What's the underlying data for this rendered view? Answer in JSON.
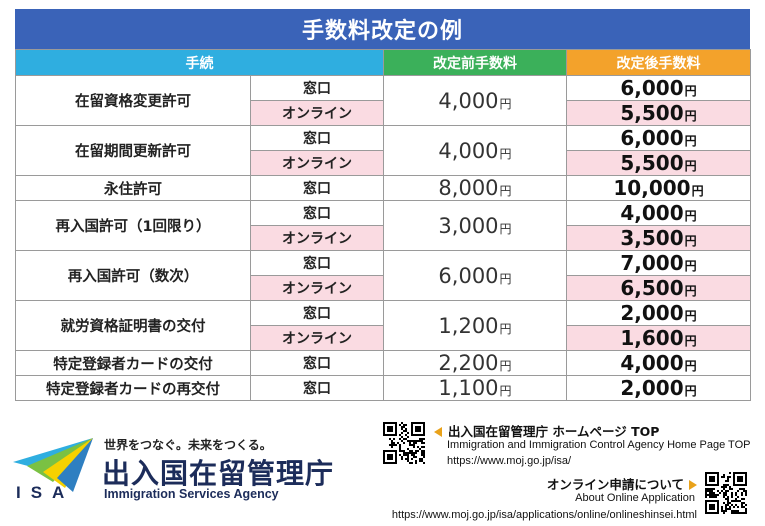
{
  "title": "手数料改定の例",
  "headers": {
    "procedure": "手続",
    "before": "改定前手数料",
    "after": "改定後手数料"
  },
  "currency_unit": "円",
  "rows": [
    {
      "procedure": "在留資格変更許可",
      "before": "4,000",
      "methods": [
        {
          "label": "窓口",
          "after": "6,000"
        },
        {
          "label": "オンライン",
          "after": "5,500"
        }
      ]
    },
    {
      "procedure": "在留期間更新許可",
      "before": "4,000",
      "methods": [
        {
          "label": "窓口",
          "after": "6,000"
        },
        {
          "label": "オンライン",
          "after": "5,500"
        }
      ]
    },
    {
      "procedure": "永住許可",
      "before": "8,000",
      "methods": [
        {
          "label": "窓口",
          "after": "10,000"
        }
      ]
    },
    {
      "procedure": "再入国許可（1回限り）",
      "before": "3,000",
      "methods": [
        {
          "label": "窓口",
          "after": "4,000"
        },
        {
          "label": "オンライン",
          "after": "3,500"
        }
      ]
    },
    {
      "procedure": "再入国許可（数次）",
      "before": "6,000",
      "methods": [
        {
          "label": "窓口",
          "after": "7,000"
        },
        {
          "label": "オンライン",
          "after": "6,500"
        }
      ]
    },
    {
      "procedure": "就労資格証明書の交付",
      "before": "1,200",
      "methods": [
        {
          "label": "窓口",
          "after": "2,000"
        },
        {
          "label": "オンライン",
          "after": "1,600"
        }
      ]
    },
    {
      "procedure": "特定登録者カードの交付",
      "before": "2,200",
      "methods": [
        {
          "label": "窓口",
          "after": "4,000"
        }
      ]
    },
    {
      "procedure": "特定登録者カードの再交付",
      "before": "1,100",
      "methods": [
        {
          "label": "窓口",
          "after": "2,000"
        }
      ]
    }
  ],
  "footer": {
    "logo_letters": "ISA",
    "tagline": "世界をつなぐ。未来をつくる。",
    "agency_jp": "出入国在留管理庁",
    "agency_en": "Immigration Services Agency",
    "homepage": {
      "title": "出入国在留管理庁 ホームページ TOP",
      "en": "Immigration and Immigration Control Agency Home Page TOP",
      "url": "https://www.moj.go.jp/isa/"
    },
    "online": {
      "title": "オンライン申請について",
      "en": "About Online Application",
      "url": "https://www.moj.go.jp/isa/applications/online/onlineshinsei.html"
    }
  },
  "colors": {
    "title_bg": "#3a63b8",
    "header_procedure": "#2faee0",
    "header_before": "#3bb05a",
    "header_after": "#f3a22b",
    "online_row": "#fadbe2",
    "arrow": "#e9a21a"
  },
  "icons": [
    "isa-logo-icon",
    "qr-code-icon",
    "arrow-left-icon",
    "arrow-right-icon"
  ]
}
